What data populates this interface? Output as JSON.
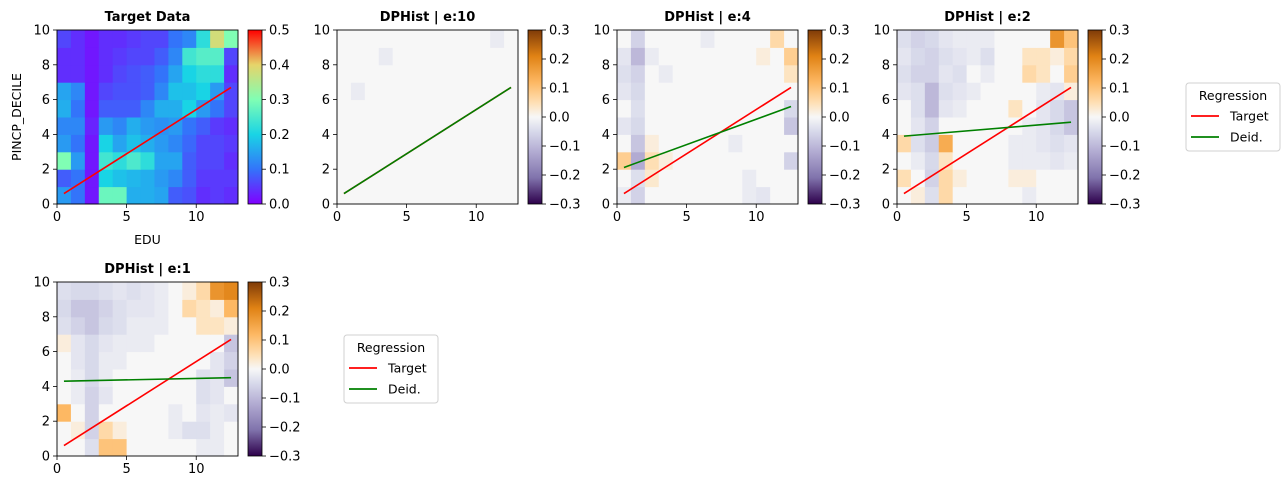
{
  "chart_data": [
    {
      "type": "heatmap",
      "title": "Target Data",
      "xlabel": "EDU",
      "ylabel": "PINCP_DECILE",
      "xlim": [
        0,
        13
      ],
      "ylim": [
        0,
        10
      ],
      "xticks": [
        "0",
        "5",
        "10"
      ],
      "yticks": [
        "0",
        "2",
        "4",
        "6",
        "8",
        "10"
      ],
      "colormap": "rainbow",
      "colorbar": {
        "ticks": [
          "0.0",
          "0.1",
          "0.2",
          "0.3",
          "0.4",
          "0.5"
        ],
        "range": [
          0,
          0.5
        ]
      },
      "grid_values": [
        [
          0.14,
          0.1,
          0.02,
          0.28,
          0.28,
          0.16,
          0.16,
          0.15,
          0.08,
          0.07,
          0.04,
          0.05,
          0.04
        ],
        [
          0.08,
          0.1,
          0.02,
          0.2,
          0.18,
          0.17,
          0.16,
          0.14,
          0.12,
          0.08,
          0.05,
          0.05,
          0.05
        ],
        [
          0.3,
          0.14,
          0.02,
          0.24,
          0.22,
          0.25,
          0.22,
          0.15,
          0.15,
          0.08,
          0.06,
          0.06,
          0.04
        ],
        [
          0.14,
          0.1,
          0.02,
          0.2,
          0.15,
          0.18,
          0.16,
          0.14,
          0.12,
          0.09,
          0.06,
          0.06,
          0.05
        ],
        [
          0.12,
          0.12,
          0.03,
          0.14,
          0.12,
          0.16,
          0.14,
          0.13,
          0.14,
          0.1,
          0.08,
          0.05,
          0.04
        ],
        [
          0.16,
          0.1,
          0.02,
          0.08,
          0.08,
          0.08,
          0.12,
          0.16,
          0.16,
          0.2,
          0.14,
          0.1,
          0.06
        ],
        [
          0.15,
          0.12,
          0.02,
          0.06,
          0.07,
          0.07,
          0.08,
          0.12,
          0.18,
          0.18,
          0.2,
          0.14,
          0.06
        ],
        [
          0.04,
          0.04,
          0.02,
          0.04,
          0.06,
          0.07,
          0.08,
          0.1,
          0.15,
          0.2,
          0.22,
          0.22,
          0.04
        ],
        [
          0.04,
          0.04,
          0.02,
          0.04,
          0.05,
          0.06,
          0.06,
          0.08,
          0.12,
          0.24,
          0.26,
          0.26,
          0.06
        ],
        [
          0.06,
          0.04,
          0.02,
          0.04,
          0.04,
          0.05,
          0.06,
          0.06,
          0.1,
          0.12,
          0.22,
          0.38,
          0.3
        ]
      ],
      "series": [
        {
          "name": "Target",
          "color": "#ff0000",
          "x": [
            0.5,
            12.5
          ],
          "y": [
            0.6,
            6.7
          ]
        }
      ]
    },
    {
      "type": "heatmap",
      "title": "DPHist | e:10",
      "xlim": [
        0,
        13
      ],
      "ylim": [
        0,
        10
      ],
      "xticks": [
        "0",
        "5",
        "10"
      ],
      "yticks": [
        "0",
        "2",
        "4",
        "6",
        "8",
        "10"
      ],
      "colormap": "PuOr",
      "colorbar": {
        "ticks": [
          "0.3",
          "0.2",
          "0.1",
          "0.0",
          "−0.1",
          "−0.2",
          "−0.3"
        ],
        "range": [
          -0.3,
          0.3
        ]
      },
      "grid_values": [
        [
          0,
          0,
          0,
          0,
          0,
          0,
          0,
          0,
          0,
          0,
          0,
          0,
          0
        ],
        [
          0,
          0,
          0,
          0,
          0,
          0,
          0,
          0,
          0,
          0,
          0,
          0,
          0
        ],
        [
          0,
          0,
          0,
          0,
          0,
          0,
          0,
          0,
          0,
          0,
          0,
          0,
          0
        ],
        [
          0,
          0,
          0,
          0,
          0,
          0,
          0,
          0,
          0,
          0,
          0,
          0,
          0
        ],
        [
          0,
          0,
          0,
          0,
          0,
          0,
          0,
          0,
          0,
          0,
          0,
          0,
          0
        ],
        [
          0,
          0,
          0,
          0,
          0,
          0,
          0,
          0,
          0,
          0,
          0,
          0,
          0
        ],
        [
          0,
          -0.02,
          0,
          0,
          0,
          0,
          0,
          0,
          0,
          0,
          0,
          0,
          0
        ],
        [
          0,
          0,
          0,
          0,
          0,
          0,
          0,
          0,
          0,
          0,
          0,
          0,
          0
        ],
        [
          0,
          0,
          0,
          -0.02,
          0,
          0,
          0,
          0,
          0,
          0,
          0,
          0,
          0
        ],
        [
          0,
          0,
          0,
          0,
          0,
          0,
          0,
          0,
          0,
          0,
          0,
          -0.02,
          0
        ]
      ],
      "series": [
        {
          "name": "Target",
          "color": "#ff0000",
          "x": [
            0.5,
            12.5
          ],
          "y": [
            0.6,
            6.7
          ]
        },
        {
          "name": "Deid.",
          "color": "#008000",
          "x": [
            0.5,
            12.5
          ],
          "y": [
            0.6,
            6.7
          ]
        }
      ]
    },
    {
      "type": "heatmap",
      "title": "DPHist | e:4",
      "xlim": [
        0,
        13
      ],
      "ylim": [
        0,
        10
      ],
      "xticks": [
        "0",
        "5",
        "10"
      ],
      "yticks": [
        "0",
        "2",
        "4",
        "6",
        "8",
        "10"
      ],
      "colormap": "PuOr",
      "colorbar": {
        "ticks": [
          "0.3",
          "0.2",
          "0.1",
          "0.0",
          "−0.1",
          "−0.2",
          "−0.3"
        ],
        "range": [
          -0.3,
          0.3
        ]
      },
      "grid_values": [
        [
          -0.02,
          -0.06,
          0.0,
          0.0,
          0.0,
          0.0,
          0.0,
          0.0,
          0.0,
          -0.02,
          -0.03,
          0.0,
          0.0
        ],
        [
          0.0,
          -0.04,
          0.03,
          0.0,
          0.0,
          0.0,
          0.0,
          0.0,
          0.0,
          -0.02,
          0.0,
          0.0,
          0.0
        ],
        [
          0.08,
          -0.12,
          0.05,
          0.02,
          0.0,
          0.0,
          0.0,
          0.0,
          0.0,
          0.0,
          0.0,
          0.0,
          -0.06
        ],
        [
          0.0,
          -0.08,
          0.02,
          0.0,
          0.0,
          0.0,
          0.0,
          0.0,
          -0.02,
          0.0,
          0.0,
          0.0,
          0.0
        ],
        [
          -0.03,
          -0.05,
          0.0,
          0.0,
          0.0,
          0.0,
          0.0,
          0.0,
          0.0,
          0.0,
          0.0,
          0.0,
          -0.08
        ],
        [
          0.0,
          -0.04,
          0.0,
          0.0,
          0.0,
          0.0,
          0.0,
          0.0,
          0.0,
          0.0,
          0.0,
          0.0,
          -0.05
        ],
        [
          -0.03,
          -0.05,
          0.0,
          0.0,
          0.0,
          0.0,
          0.0,
          0.0,
          0.0,
          0.0,
          0.0,
          0.0,
          0.0
        ],
        [
          -0.04,
          -0.06,
          0.0,
          -0.02,
          0.0,
          0.0,
          0.0,
          0.0,
          0.0,
          0.0,
          0.0,
          0.0,
          0.04
        ],
        [
          -0.03,
          -0.1,
          -0.02,
          0.0,
          0.0,
          0.0,
          0.0,
          0.0,
          0.0,
          0.0,
          0.02,
          0.0,
          0.08
        ],
        [
          0.0,
          -0.06,
          0.0,
          0.0,
          0.0,
          0.0,
          -0.02,
          0.0,
          0.0,
          0.0,
          0.0,
          0.06,
          0.0
        ]
      ],
      "series": [
        {
          "name": "Target",
          "color": "#ff0000",
          "x": [
            0.5,
            12.5
          ],
          "y": [
            0.6,
            6.7
          ]
        },
        {
          "name": "Deid.",
          "color": "#008000",
          "x": [
            0.5,
            12.5
          ],
          "y": [
            2.1,
            5.6
          ]
        }
      ]
    },
    {
      "type": "heatmap",
      "title": "DPHist | e:2",
      "xlim": [
        0,
        13
      ],
      "ylim": [
        0,
        10
      ],
      "xticks": [
        "0",
        "5",
        "10"
      ],
      "yticks": [
        "0",
        "2",
        "4",
        "6",
        "8",
        "10"
      ],
      "colormap": "PuOr",
      "colorbar": {
        "ticks": [
          "0.3",
          "0.2",
          "0.1",
          "0.0",
          "−0.1",
          "−0.2",
          "−0.3"
        ],
        "range": [
          -0.3,
          0.3
        ]
      },
      "grid_values": [
        [
          0.0,
          0.02,
          -0.04,
          0.06,
          0.0,
          0.0,
          0.0,
          0.0,
          0.0,
          -0.02,
          0.0,
          0.0,
          0.0
        ],
        [
          0.05,
          0.0,
          -0.06,
          0.06,
          0.02,
          0.0,
          0.0,
          0.0,
          0.02,
          0.02,
          0.0,
          0.0,
          0.0
        ],
        [
          0.0,
          -0.02,
          -0.05,
          0.04,
          0.0,
          0.0,
          0.0,
          0.0,
          -0.02,
          -0.02,
          -0.02,
          -0.03,
          -0.02
        ],
        [
          0.06,
          -0.04,
          -0.07,
          0.14,
          0.0,
          0.0,
          0.0,
          0.0,
          -0.02,
          -0.02,
          -0.03,
          -0.04,
          -0.03
        ],
        [
          0.0,
          -0.03,
          -0.06,
          0.0,
          0.0,
          0.0,
          0.0,
          0.0,
          0.0,
          -0.02,
          -0.03,
          -0.05,
          -0.08
        ],
        [
          0.0,
          -0.04,
          -0.1,
          -0.03,
          -0.02,
          0.0,
          0.0,
          0.0,
          0.04,
          0.0,
          -0.03,
          -0.05,
          -0.08
        ],
        [
          -0.03,
          -0.04,
          -0.1,
          -0.04,
          -0.03,
          -0.02,
          0.0,
          0.0,
          0.0,
          0.0,
          -0.02,
          -0.03,
          0.02
        ],
        [
          -0.04,
          -0.06,
          -0.06,
          -0.03,
          -0.04,
          0.0,
          -0.02,
          0.0,
          0.0,
          0.06,
          0.04,
          0.0,
          0.08
        ],
        [
          -0.03,
          -0.05,
          -0.06,
          -0.04,
          -0.03,
          -0.02,
          -0.04,
          0.0,
          0.0,
          0.04,
          0.04,
          0.02,
          0.06
        ],
        [
          -0.04,
          -0.06,
          -0.05,
          -0.03,
          -0.02,
          -0.02,
          -0.02,
          0.0,
          0.0,
          0.0,
          0.0,
          0.18,
          0.1
        ]
      ],
      "series": [
        {
          "name": "Target",
          "color": "#ff0000",
          "x": [
            0.5,
            12.5
          ],
          "y": [
            0.6,
            6.7
          ]
        },
        {
          "name": "Deid.",
          "color": "#008000",
          "x": [
            0.5,
            12.5
          ],
          "y": [
            3.9,
            4.7
          ]
        }
      ]
    },
    {
      "type": "heatmap",
      "title": "DPHist | e:1",
      "xlim": [
        0,
        13
      ],
      "ylim": [
        0,
        10
      ],
      "xticks": [
        "0",
        "5",
        "10"
      ],
      "yticks": [
        "0",
        "2",
        "4",
        "6",
        "8",
        "10"
      ],
      "colormap": "PuOr",
      "colorbar": {
        "ticks": [
          "0.3",
          "0.2",
          "0.1",
          "0.0",
          "−0.1",
          "−0.2",
          "−0.3"
        ],
        "range": [
          -0.3,
          0.3
        ]
      },
      "grid_values": [
        [
          0.0,
          0.0,
          -0.04,
          0.1,
          0.1,
          0.0,
          0.0,
          0.0,
          0.0,
          0.0,
          -0.02,
          -0.02,
          0.0
        ],
        [
          0.0,
          0.02,
          -0.06,
          0.06,
          0.02,
          0.0,
          0.0,
          0.0,
          -0.02,
          -0.04,
          -0.04,
          -0.02,
          0.0
        ],
        [
          0.12,
          0.0,
          -0.06,
          0.0,
          0.0,
          0.0,
          0.0,
          0.0,
          -0.02,
          0.0,
          -0.03,
          -0.02,
          -0.03
        ],
        [
          0.0,
          -0.02,
          -0.06,
          -0.03,
          0.0,
          0.0,
          0.0,
          0.0,
          0.0,
          0.0,
          -0.04,
          -0.03,
          0.0
        ],
        [
          0.0,
          -0.02,
          -0.05,
          -0.02,
          0.0,
          0.0,
          0.0,
          0.0,
          0.0,
          0.0,
          -0.04,
          -0.03,
          -0.08
        ],
        [
          0.0,
          -0.03,
          -0.05,
          -0.02,
          -0.02,
          0.0,
          0.0,
          0.0,
          0.0,
          0.0,
          0.0,
          -0.03,
          -0.06
        ],
        [
          0.02,
          -0.03,
          -0.05,
          -0.03,
          -0.02,
          -0.02,
          -0.02,
          0.0,
          0.0,
          0.0,
          0.0,
          0.0,
          -0.08
        ],
        [
          -0.04,
          -0.06,
          -0.08,
          -0.05,
          -0.04,
          -0.02,
          -0.02,
          -0.02,
          0.0,
          0.0,
          0.04,
          0.04,
          0.02
        ],
        [
          -0.05,
          -0.08,
          -0.08,
          -0.06,
          -0.04,
          -0.03,
          -0.03,
          -0.02,
          0.0,
          0.06,
          0.04,
          0.02,
          0.12
        ],
        [
          -0.04,
          -0.05,
          -0.05,
          -0.04,
          -0.03,
          -0.04,
          -0.03,
          -0.02,
          0.0,
          0.02,
          0.06,
          0.18,
          0.2
        ]
      ],
      "series": [
        {
          "name": "Target",
          "color": "#ff0000",
          "x": [
            0.5,
            12.5
          ],
          "y": [
            0.6,
            6.7
          ]
        },
        {
          "name": "Deid.",
          "color": "#008000",
          "x": [
            0.5,
            12.5
          ],
          "y": [
            4.3,
            4.5
          ]
        }
      ]
    }
  ],
  "legends": [
    {
      "title": "Regression",
      "placement": "right of DPHist | e:2",
      "entries": [
        {
          "label": "Target",
          "color": "#ff0000"
        },
        {
          "label": "Deid.",
          "color": "#008000"
        }
      ]
    },
    {
      "title": "Regression",
      "placement": "right of DPHist | e:1",
      "entries": [
        {
          "label": "Target",
          "color": "#ff0000"
        },
        {
          "label": "Deid.",
          "color": "#008000"
        }
      ]
    }
  ]
}
